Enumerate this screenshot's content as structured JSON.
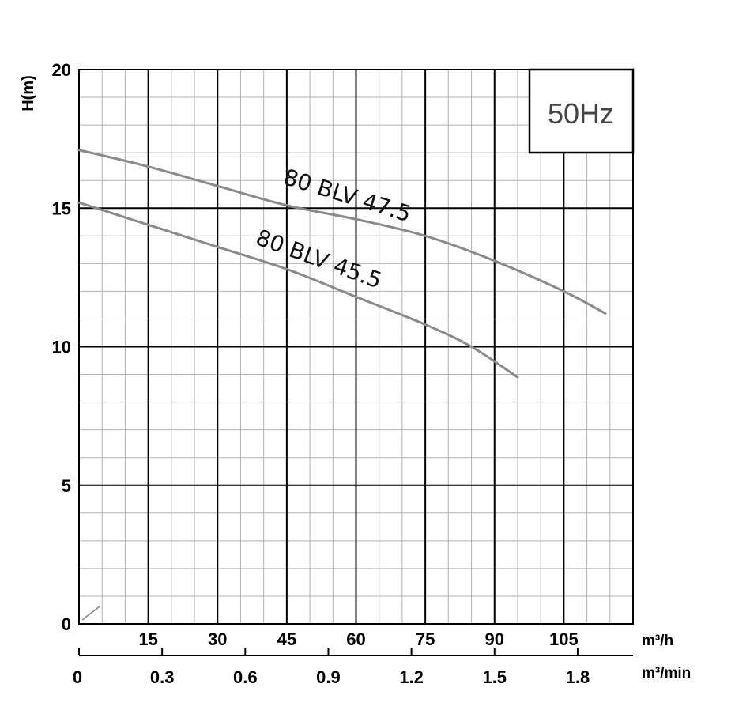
{
  "chart_data": {
    "type": "line",
    "ylabel": "H(m)",
    "frequency_label": "50Hz",
    "x_unit_primary": "m³/h",
    "x_unit_secondary": "m³/min",
    "xlim": [
      0,
      120
    ],
    "ylim": [
      0,
      20
    ],
    "x_ticks": [
      "15",
      "30",
      "45",
      "60",
      "75",
      "90",
      "105"
    ],
    "x_ticks_secondary": [
      "0",
      "0.3",
      "0.6",
      "0.9",
      "1.2",
      "1.5",
      "1.8"
    ],
    "y_ticks": [
      "0",
      "5",
      "10",
      "15",
      "20"
    ],
    "grid": true,
    "series": [
      {
        "name": "80 BLV 47.5",
        "x": [
          0,
          15,
          30,
          45,
          60,
          75,
          90,
          105,
          114
        ],
        "y": [
          17.1,
          16.5,
          15.8,
          15.1,
          14.6,
          14.0,
          13.1,
          12.0,
          11.2
        ]
      },
      {
        "name": "80 BLV 45.5",
        "x": [
          0,
          15,
          30,
          45,
          60,
          75,
          85,
          95
        ],
        "y": [
          15.2,
          14.4,
          13.6,
          12.8,
          11.8,
          10.8,
          10.0,
          8.9
        ]
      }
    ]
  }
}
